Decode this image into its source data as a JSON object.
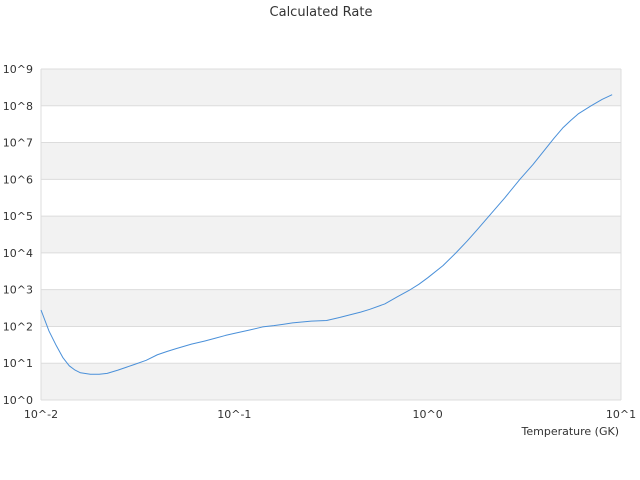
{
  "chart_data": {
    "type": "line",
    "title": "Calculated Rate",
    "xlabel": "Temperature (GK)",
    "ylabel": "",
    "x_scale": "log",
    "y_scale": "log",
    "xlim": [
      0.01,
      10
    ],
    "ylim": [
      1,
      1000000000
    ],
    "x_ticks": [
      0.01,
      0.1,
      1,
      10
    ],
    "x_tick_labels": [
      "10^-2",
      "10^-1",
      "10^0",
      "10^1"
    ],
    "y_ticks": [
      1,
      10,
      100,
      1000,
      10000,
      100000,
      1000000,
      10000000,
      100000000,
      1000000000
    ],
    "y_tick_labels": [
      "10^0",
      "10^1",
      "10^2",
      "10^3",
      "10^4",
      "10^5",
      "10^6",
      "10^7",
      "10^8",
      "10^9"
    ],
    "grid": true,
    "banded_background": true,
    "legend": "none",
    "series": [
      {
        "color": "#4a90d9",
        "x": [
          0.01,
          0.011,
          0.012,
          0.013,
          0.014,
          0.015,
          0.016,
          0.018,
          0.02,
          0.022,
          0.025,
          0.03,
          0.035,
          0.04,
          0.045,
          0.05,
          0.06,
          0.07,
          0.08,
          0.09,
          0.1,
          0.12,
          0.14,
          0.16,
          0.18,
          0.2,
          0.25,
          0.3,
          0.35,
          0.4,
          0.45,
          0.5,
          0.6,
          0.7,
          0.8,
          0.9,
          1.0,
          1.2,
          1.4,
          1.6,
          1.8,
          2.0,
          2.5,
          3.0,
          3.5,
          4.0,
          4.5,
          5.0,
          5.5,
          6.0,
          7.0,
          8.0,
          9.0
        ],
        "y": [
          280,
          75,
          30,
          14,
          8.5,
          6.5,
          5.5,
          5.0,
          5.0,
          5.3,
          6.5,
          9.0,
          12,
          17,
          21,
          25,
          33,
          40,
          48,
          57,
          65,
          80,
          97,
          105,
          115,
          125,
          140,
          145,
          175,
          210,
          245,
          290,
          410,
          650,
          950,
          1400,
          2100,
          4500,
          10000,
          21000,
          42000,
          80000,
          310000,
          1000000,
          2500000,
          6000000,
          13000000,
          25000000,
          40000000,
          60000000,
          100000000,
          150000000,
          200000000
        ]
      }
    ]
  }
}
